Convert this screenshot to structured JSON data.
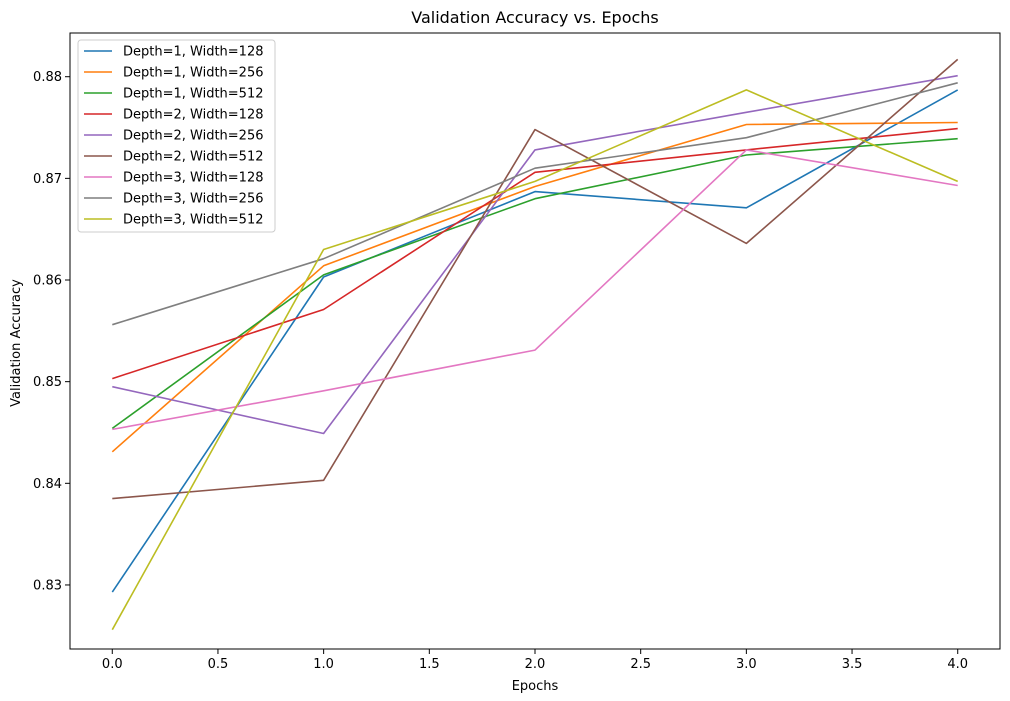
{
  "chart_data": {
    "type": "line",
    "title": "Validation Accuracy vs. Epochs",
    "xlabel": "Epochs",
    "ylabel": "Validation Accuracy",
    "xlim": [
      -0.2,
      4.2
    ],
    "ylim": [
      0.8237,
      0.8843
    ],
    "xticks": [
      0.0,
      0.5,
      1.0,
      1.5,
      2.0,
      2.5,
      3.0,
      3.5,
      4.0
    ],
    "xtick_labels": [
      "0.0",
      "0.5",
      "1.0",
      "1.5",
      "2.0",
      "2.5",
      "3.0",
      "3.5",
      "4.0"
    ],
    "yticks": [
      0.83,
      0.84,
      0.85,
      0.86,
      0.87,
      0.88
    ],
    "ytick_labels": [
      "0.83",
      "0.84",
      "0.85",
      "0.86",
      "0.87",
      "0.88"
    ],
    "grid": false,
    "legend_position": "top-left",
    "x": [
      0,
      1,
      2,
      3,
      4
    ],
    "series": [
      {
        "name": "Depth=1, Width=128",
        "color": "#1f77b4",
        "values": [
          0.8293,
          0.8603,
          0.8687,
          0.8671,
          0.8787
        ]
      },
      {
        "name": "Depth=1, Width=256",
        "color": "#ff7f0e",
        "values": [
          0.8431,
          0.8614,
          0.8692,
          0.8753,
          0.8755
        ]
      },
      {
        "name": "Depth=1, Width=512",
        "color": "#2ca02c",
        "values": [
          0.8454,
          0.8605,
          0.868,
          0.8723,
          0.8739
        ]
      },
      {
        "name": "Depth=2, Width=128",
        "color": "#d62728",
        "values": [
          0.8503,
          0.8571,
          0.8706,
          0.8728,
          0.8749
        ]
      },
      {
        "name": "Depth=2, Width=256",
        "color": "#9467bd",
        "values": [
          0.8495,
          0.8449,
          0.8728,
          0.8765,
          0.8801
        ]
      },
      {
        "name": "Depth=2, Width=512",
        "color": "#8c564b",
        "values": [
          0.8385,
          0.8403,
          0.8748,
          0.8636,
          0.8817
        ]
      },
      {
        "name": "Depth=3, Width=128",
        "color": "#e377c2",
        "values": [
          0.8453,
          0.8491,
          0.8531,
          0.8728,
          0.8693
        ]
      },
      {
        "name": "Depth=3, Width=256",
        "color": "#7f7f7f",
        "values": [
          0.8556,
          0.8621,
          0.871,
          0.874,
          0.8794
        ]
      },
      {
        "name": "Depth=3, Width=512",
        "color": "#bcbd22",
        "values": [
          0.8256,
          0.863,
          0.8697,
          0.8787,
          0.8697
        ]
      }
    ]
  }
}
